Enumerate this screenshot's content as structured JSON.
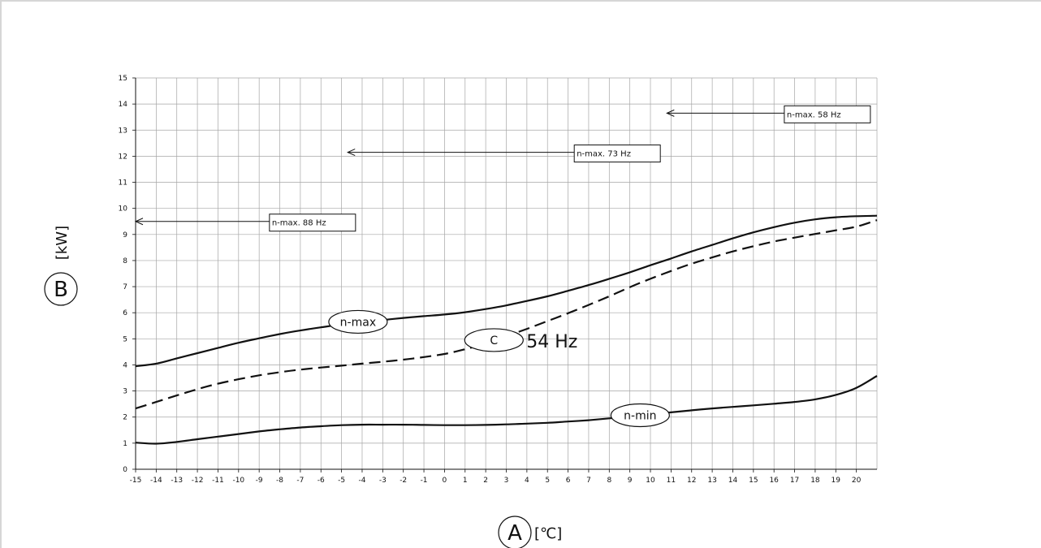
{
  "chart_data": {
    "type": "line",
    "xlabel_marker": "A",
    "xlabel_unit": "[℃]",
    "ylabel_marker": "B",
    "ylabel_unit": "[kW]",
    "xlim": [
      -15,
      21
    ],
    "ylim": [
      0,
      15
    ],
    "x_ticks": [
      -15,
      -14,
      -13,
      -12,
      -11,
      -10,
      -9,
      -8,
      -7,
      -6,
      -5,
      -4,
      -3,
      -2,
      -1,
      0,
      1,
      2,
      3,
      4,
      5,
      6,
      7,
      8,
      9,
      10,
      11,
      12,
      13,
      14,
      15,
      16,
      17,
      18,
      19,
      20
    ],
    "y_ticks": [
      0,
      1,
      2,
      3,
      4,
      5,
      6,
      7,
      8,
      9,
      10,
      11,
      12,
      13,
      14,
      15
    ],
    "grid": true,
    "series": [
      {
        "name": "n-max",
        "style": "solid",
        "x": [
          -15,
          -14,
          -13,
          -12,
          -11,
          -10,
          -9,
          -8,
          -7,
          -6,
          -5,
          -4,
          -3,
          -2,
          -1,
          0,
          1,
          2,
          3,
          4,
          5,
          6,
          7,
          8,
          9,
          10,
          11,
          12,
          13,
          14,
          15,
          16,
          17,
          18,
          19,
          20,
          21
        ],
        "values": [
          3.95,
          4.05,
          4.25,
          4.45,
          4.65,
          4.85,
          5.02,
          5.18,
          5.32,
          5.44,
          5.55,
          5.64,
          5.72,
          5.8,
          5.87,
          5.93,
          6.02,
          6.14,
          6.28,
          6.45,
          6.63,
          6.84,
          7.06,
          7.3,
          7.55,
          7.82,
          8.08,
          8.35,
          8.6,
          8.85,
          9.08,
          9.28,
          9.45,
          9.58,
          9.66,
          9.7,
          9.72
        ]
      },
      {
        "name": "C",
        "style": "dashed",
        "x": [
          -15,
          -14,
          -13,
          -12,
          -11,
          -10,
          -9,
          -8,
          -7,
          -6,
          -5,
          -4,
          -3,
          -2,
          -1,
          0,
          1,
          2,
          3,
          4,
          5,
          6,
          7,
          8,
          9,
          10,
          11,
          12,
          13,
          14,
          15,
          16,
          17,
          18,
          19,
          20,
          21
        ],
        "values": [
          2.33,
          2.58,
          2.83,
          3.07,
          3.28,
          3.45,
          3.6,
          3.72,
          3.82,
          3.9,
          3.97,
          4.05,
          4.12,
          4.2,
          4.3,
          4.42,
          4.6,
          4.82,
          5.1,
          5.38,
          5.68,
          5.98,
          6.3,
          6.63,
          6.98,
          7.3,
          7.6,
          7.88,
          8.12,
          8.35,
          8.55,
          8.73,
          8.88,
          9.02,
          9.16,
          9.3,
          9.55
        ]
      },
      {
        "name": "n-min",
        "style": "solid",
        "x": [
          -15,
          -14,
          -13,
          -12,
          -11,
          -10,
          -9,
          -8,
          -7,
          -6,
          -5,
          -4,
          -3,
          -2,
          -1,
          0,
          1,
          2,
          3,
          4,
          5,
          6,
          7,
          8,
          9,
          10,
          11,
          12,
          13,
          14,
          15,
          16,
          17,
          18,
          19,
          20,
          21
        ],
        "values": [
          1.02,
          0.98,
          1.05,
          1.15,
          1.25,
          1.35,
          1.45,
          1.53,
          1.6,
          1.65,
          1.69,
          1.71,
          1.71,
          1.71,
          1.7,
          1.69,
          1.69,
          1.7,
          1.72,
          1.75,
          1.78,
          1.83,
          1.88,
          1.95,
          2.02,
          2.1,
          2.18,
          2.26,
          2.33,
          2.39,
          2.45,
          2.51,
          2.58,
          2.68,
          2.85,
          3.12,
          3.58
        ]
      }
    ],
    "curve_labels": [
      {
        "text": "n-max",
        "x": -4.2,
        "y": 5.65
      },
      {
        "text": "C",
        "x": 2.4,
        "y": 4.95,
        "suffix": "54 Hz"
      },
      {
        "text": "n-min",
        "x": 9.5,
        "y": 2.07
      }
    ],
    "annotations": [
      {
        "text": "n-max. 88 Hz",
        "value_y": 9.5,
        "arrow_x": -15,
        "box_x": -8.5
      },
      {
        "text": "n-max. 73 Hz",
        "value_y": 12.15,
        "arrow_x": -4.7,
        "box_x": 6.3
      },
      {
        "text": "n-max. 58 Hz",
        "value_y": 13.65,
        "arrow_x": 10.8,
        "box_x": 16.5
      }
    ]
  }
}
